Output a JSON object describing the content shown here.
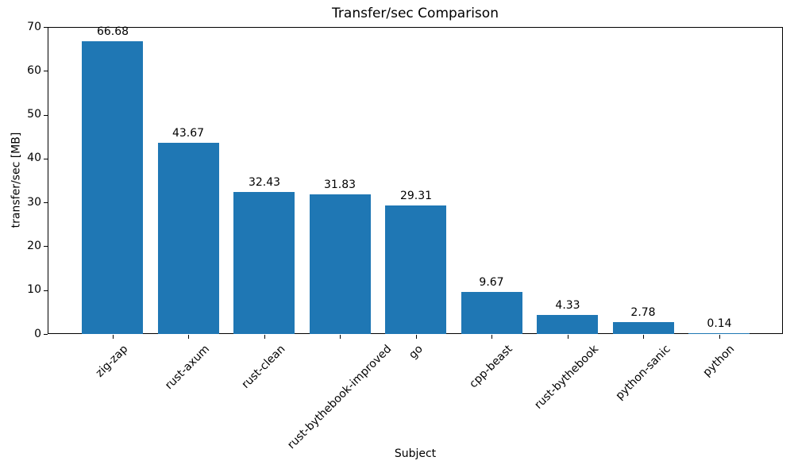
{
  "chart_data": {
    "type": "bar",
    "title": "Transfer/sec Comparison",
    "xlabel": "Subject",
    "ylabel": "transfer/sec [MB]",
    "categories": [
      "zig-zap",
      "rust-axum",
      "rust-clean",
      "rust-bythebook-improved",
      "go",
      "cpp-beast",
      "rust-bythebook",
      "python-sanic",
      "python"
    ],
    "values": [
      66.68,
      43.67,
      32.43,
      31.83,
      29.31,
      9.67,
      4.33,
      2.78,
      0.14
    ],
    "bar_labels": [
      "66.68",
      "43.67",
      "32.43",
      "31.83",
      "29.31",
      "9.67",
      "4.33",
      "2.78",
      "0.14"
    ],
    "ylim": [
      0,
      70
    ],
    "yticks": [
      "0",
      "10",
      "20",
      "30",
      "40",
      "50",
      "60",
      "70"
    ],
    "xtick_rotation_deg": 45,
    "grid": false,
    "bar_color": "#1f77b4",
    "spine_color": "#000000",
    "text_color": "#000000"
  }
}
